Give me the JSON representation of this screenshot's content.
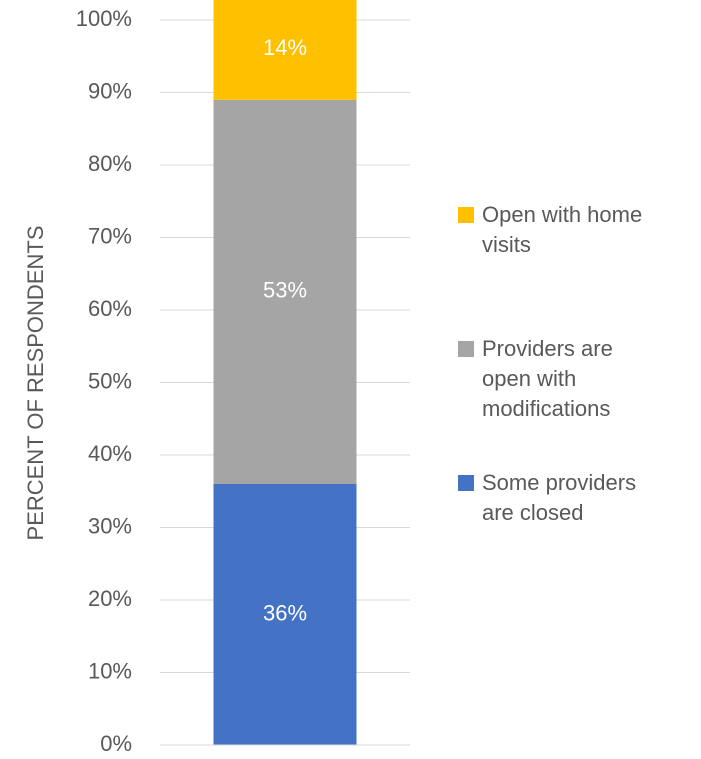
{
  "chart_data": {
    "type": "stacked_bar",
    "y_label": "PERCENT OF RESPONDENTS",
    "categories": [
      null
    ],
    "series": [
      {
        "name": "Some providers are closed",
        "color": "#4472c4",
        "values": [
          36
        ],
        "value_labels": [
          "36%"
        ]
      },
      {
        "name": "Providers are open with modifications",
        "color": "#a5a5a5",
        "values": [
          53
        ],
        "value_labels": [
          "53%"
        ]
      },
      {
        "name": "Open with home visits",
        "color": "#ffc000",
        "values": [
          14
        ],
        "value_labels": [
          "14%"
        ]
      }
    ],
    "ylim": [
      0,
      100
    ],
    "yticks": [
      {
        "value": 0,
        "label": "0%"
      },
      {
        "value": 10,
        "label": "10%"
      },
      {
        "value": 20,
        "label": "20%"
      },
      {
        "value": 30,
        "label": "30%"
      },
      {
        "value": 40,
        "label": "40%"
      },
      {
        "value": 50,
        "label": "50%"
      },
      {
        "value": 60,
        "label": "60%"
      },
      {
        "value": 70,
        "label": "70%"
      },
      {
        "value": 80,
        "label": "80%"
      },
      {
        "value": 90,
        "label": "90%"
      },
      {
        "value": 100,
        "label": "100%"
      }
    ],
    "grid": true,
    "legend": "right"
  }
}
